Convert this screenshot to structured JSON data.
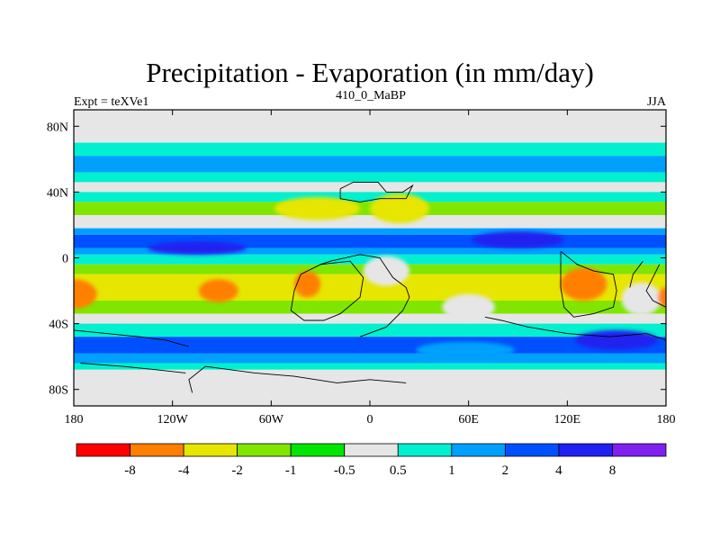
{
  "chart_data": {
    "type": "heatmap",
    "title": "Precipitation - Evaporation (in mm/day)",
    "subtitle_left": "Expt = teXVe1",
    "subtitle_center": "410_0_MaBP",
    "subtitle_right": "JJA",
    "x_range": [
      -180,
      180
    ],
    "y_range": [
      -90,
      90
    ],
    "x_ticks": [
      {
        "value": -180,
        "label": "180"
      },
      {
        "value": -120,
        "label": "120W"
      },
      {
        "value": -60,
        "label": "60W"
      },
      {
        "value": 0,
        "label": "0"
      },
      {
        "value": 60,
        "label": "60E"
      },
      {
        "value": 120,
        "label": "120E"
      },
      {
        "value": 180,
        "label": "180"
      }
    ],
    "y_ticks": [
      {
        "value": 80,
        "label": "80N"
      },
      {
        "value": 40,
        "label": "40N"
      },
      {
        "value": 0,
        "label": "0"
      },
      {
        "value": -40,
        "label": "40S"
      },
      {
        "value": -80,
        "label": "80S"
      }
    ],
    "colorbar": {
      "colors": [
        "#ff0000",
        "#ff8000",
        "#e6e600",
        "#80e600",
        "#00e600",
        "#e6e6e6",
        "#00f0d0",
        "#00a0ff",
        "#0050ff",
        "#2020f0",
        "#8020f0"
      ],
      "labels": [
        "-8",
        "-4",
        "-2",
        "-1",
        "-0.5",
        "0.5",
        "1",
        "2",
        "4",
        "8"
      ]
    },
    "zonal_bands": [
      {
        "lat": [
          70,
          90
        ],
        "color": "#e6e6e6"
      },
      {
        "lat": [
          62,
          70
        ],
        "color": "#00f0d0"
      },
      {
        "lat": [
          52,
          62
        ],
        "color": "#00a0ff"
      },
      {
        "lat": [
          46,
          52
        ],
        "color": "#00f0d0"
      },
      {
        "lat": [
          40,
          46
        ],
        "color": "#e6e6e6"
      },
      {
        "lat": [
          34,
          40
        ],
        "color": "#00f0d0"
      },
      {
        "lat": [
          26,
          34
        ],
        "color": "#80e600"
      },
      {
        "lat": [
          18,
          26
        ],
        "color": "#e6e6e6"
      },
      {
        "lat": [
          14,
          18
        ],
        "color": "#00a0ff"
      },
      {
        "lat": [
          6,
          14
        ],
        "color": "#0050ff"
      },
      {
        "lat": [
          2,
          6
        ],
        "color": "#00a0ff"
      },
      {
        "lat": [
          -4,
          2
        ],
        "color": "#00f0d0"
      },
      {
        "lat": [
          -10,
          -4
        ],
        "color": "#80e600"
      },
      {
        "lat": [
          -26,
          -10
        ],
        "color": "#e6e600"
      },
      {
        "lat": [
          -34,
          -26
        ],
        "color": "#80e600"
      },
      {
        "lat": [
          -40,
          -34
        ],
        "color": "#e6e6e6"
      },
      {
        "lat": [
          -48,
          -40
        ],
        "color": "#00f0d0"
      },
      {
        "lat": [
          -58,
          -48
        ],
        "color": "#0050ff"
      },
      {
        "lat": [
          -64,
          -58
        ],
        "color": "#00a0ff"
      },
      {
        "lat": [
          -68,
          -64
        ],
        "color": "#00f0d0"
      },
      {
        "lat": [
          -90,
          -68
        ],
        "color": "#e6e6e6"
      }
    ],
    "patches": [
      {
        "lon": -180,
        "lat": -22,
        "rx": 14,
        "ry": 9,
        "color": "#ff8000"
      },
      {
        "lon": -105,
        "lat": 6,
        "rx": 30,
        "ry": 4,
        "color": "#2020f0"
      },
      {
        "lon": -92,
        "lat": -20,
        "rx": 12,
        "ry": 7,
        "color": "#ff8000"
      },
      {
        "lon": -38,
        "lat": -16,
        "rx": 8,
        "ry": 8,
        "color": "#ff8000"
      },
      {
        "lon": -32,
        "lat": 30,
        "rx": 26,
        "ry": 7,
        "color": "#e6e600"
      },
      {
        "lon": 10,
        "lat": -8,
        "rx": 14,
        "ry": 9,
        "color": "#e6e6e6"
      },
      {
        "lon": 18,
        "lat": 30,
        "rx": 18,
        "ry": 9,
        "color": "#e6e600"
      },
      {
        "lon": 60,
        "lat": -30,
        "rx": 16,
        "ry": 8,
        "color": "#e6e6e6"
      },
      {
        "lon": 90,
        "lat": 11,
        "rx": 28,
        "ry": 5,
        "color": "#2020f0"
      },
      {
        "lon": 130,
        "lat": -16,
        "rx": 14,
        "ry": 10,
        "color": "#ff8000"
      },
      {
        "lon": 165,
        "lat": -25,
        "rx": 12,
        "ry": 10,
        "color": "#e6e6e6"
      },
      {
        "lon": 180,
        "lat": -24,
        "rx": 5,
        "ry": 6,
        "color": "#ff8000"
      },
      {
        "lon": 150,
        "lat": -50,
        "rx": 25,
        "ry": 6,
        "color": "#2020f0"
      },
      {
        "lon": 58,
        "lat": -56,
        "rx": 30,
        "ry": 5,
        "color": "#00a0ff"
      }
    ],
    "coastlines": [
      [
        [
          -18,
          42
        ],
        [
          -10,
          46
        ],
        [
          5,
          46
        ],
        [
          10,
          40
        ],
        [
          20,
          40
        ],
        [
          26,
          44
        ],
        [
          22,
          36
        ],
        [
          6,
          36
        ],
        [
          -6,
          34
        ],
        [
          -18,
          36
        ],
        [
          -18,
          42
        ]
      ],
      [
        [
          -42,
          -10
        ],
        [
          -30,
          -4
        ],
        [
          -12,
          -2
        ],
        [
          -4,
          -12
        ],
        [
          -6,
          -24
        ],
        [
          -18,
          -34
        ],
        [
          -28,
          -38
        ],
        [
          -40,
          -38
        ],
        [
          -48,
          -32
        ],
        [
          -46,
          -20
        ],
        [
          -42,
          -10
        ]
      ],
      [
        [
          -30,
          -4
        ],
        [
          -24,
          -2
        ],
        [
          -6,
          2
        ],
        [
          6,
          0
        ],
        [
          10,
          -6
        ],
        [
          14,
          -12
        ],
        [
          22,
          -18
        ],
        [
          24,
          -24
        ],
        [
          20,
          -32
        ],
        [
          10,
          -42
        ],
        [
          -6,
          -48
        ]
      ],
      [
        [
          116,
          4
        ],
        [
          126,
          -4
        ],
        [
          136,
          -8
        ],
        [
          148,
          -10
        ],
        [
          150,
          -20
        ],
        [
          148,
          -30
        ],
        [
          136,
          -34
        ],
        [
          124,
          -36
        ],
        [
          118,
          -30
        ],
        [
          116,
          -18
        ],
        [
          116,
          4
        ]
      ],
      [
        [
          70,
          -36
        ],
        [
          80,
          -38
        ],
        [
          96,
          -42
        ],
        [
          120,
          -46
        ],
        [
          146,
          -48
        ],
        [
          168,
          -46
        ],
        [
          180,
          -50
        ]
      ],
      [
        [
          -180,
          -44
        ],
        [
          -160,
          -46
        ],
        [
          -140,
          -48
        ],
        [
          -124,
          -50
        ],
        [
          -110,
          -54
        ]
      ],
      [
        [
          -100,
          -66
        ],
        [
          -70,
          -70
        ],
        [
          -46,
          -72
        ],
        [
          -20,
          -76
        ],
        [
          0,
          -74
        ],
        [
          22,
          -76
        ]
      ],
      [
        [
          -100,
          -66
        ],
        [
          -110,
          -74
        ],
        [
          -108,
          -82
        ]
      ],
      [
        [
          -176,
          -64
        ],
        [
          -150,
          -66
        ],
        [
          -130,
          -68
        ],
        [
          -112,
          -70
        ]
      ],
      [
        [
          176,
          -4
        ],
        [
          172,
          -12
        ],
        [
          168,
          -20
        ],
        [
          172,
          -26
        ],
        [
          180,
          -30
        ]
      ],
      [
        [
          166,
          -2
        ],
        [
          160,
          -10
        ],
        [
          158,
          -18
        ]
      ]
    ]
  }
}
